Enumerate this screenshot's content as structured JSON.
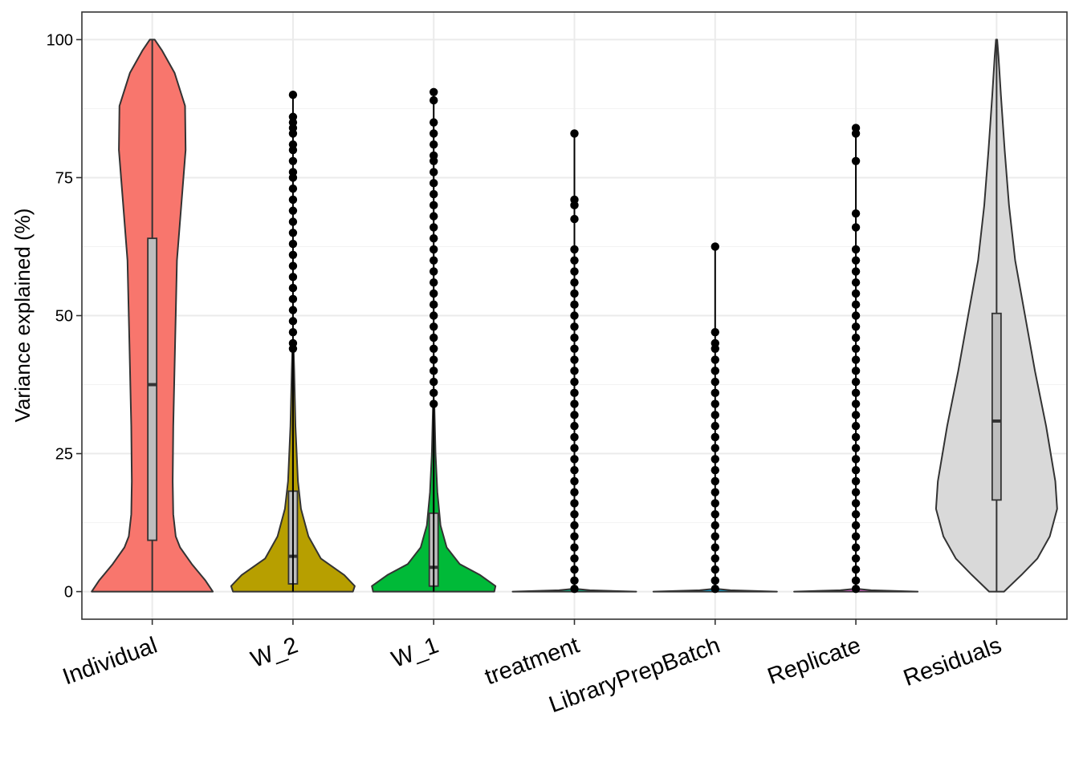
{
  "chart_data": {
    "type": "violin",
    "ylabel": "Variance explained (%)",
    "xlabel": "",
    "ylim": [
      -5,
      105
    ],
    "yticks": [
      0,
      25,
      50,
      75,
      100
    ],
    "grid": true,
    "categories": [
      "Individual",
      "W_2",
      "W_1",
      "treatment",
      "LibraryPrepBatch",
      "Replicate",
      "Residuals"
    ],
    "series": [
      {
        "category": "Individual",
        "color": "#F8766D",
        "box": {
          "q1": 9.3,
          "median": 37.5,
          "q3": 64,
          "whisker_low": 0,
          "whisker_high": 100
        },
        "violin": [
          [
            0,
            0.98
          ],
          [
            2,
            0.86
          ],
          [
            5,
            0.64
          ],
          [
            8,
            0.45
          ],
          [
            10,
            0.38
          ],
          [
            14,
            0.34
          ],
          [
            20,
            0.33
          ],
          [
            30,
            0.34
          ],
          [
            45,
            0.37
          ],
          [
            60,
            0.4
          ],
          [
            70,
            0.47
          ],
          [
            80,
            0.54
          ],
          [
            88,
            0.53
          ],
          [
            94,
            0.36
          ],
          [
            98,
            0.16
          ],
          [
            100,
            0.04
          ]
        ],
        "outliers": []
      },
      {
        "category": "W_2",
        "color": "#B79F00",
        "box": {
          "q1": 1.4,
          "median": 6.4,
          "q3": 18.2,
          "whisker_low": 0,
          "whisker_high": 43.5
        },
        "violin": [
          [
            0,
            0.97
          ],
          [
            1,
            1.0
          ],
          [
            3,
            0.83
          ],
          [
            6,
            0.45
          ],
          [
            10,
            0.25
          ],
          [
            15,
            0.13
          ],
          [
            20,
            0.08
          ],
          [
            30,
            0.04
          ],
          [
            40,
            0.02
          ],
          [
            44,
            0.01
          ]
        ],
        "outliers": [
          44,
          45,
          47,
          49,
          51,
          53,
          55,
          57,
          59,
          61,
          63,
          65,
          67,
          69,
          71,
          73,
          75,
          76,
          78,
          80,
          81,
          83,
          84,
          85,
          86,
          90
        ]
      },
      {
        "category": "W_1",
        "color": "#00BA38",
        "box": {
          "q1": 1.0,
          "median": 4.4,
          "q3": 14.2,
          "whisker_low": 0,
          "whisker_high": 33.8
        },
        "violin": [
          [
            0,
            0.98
          ],
          [
            1,
            1.0
          ],
          [
            3,
            0.75
          ],
          [
            5,
            0.42
          ],
          [
            8,
            0.21
          ],
          [
            12,
            0.11
          ],
          [
            18,
            0.06
          ],
          [
            25,
            0.03
          ],
          [
            34,
            0.01
          ]
        ],
        "outliers": [
          34,
          36,
          38,
          40,
          42,
          44,
          46,
          48,
          50,
          52,
          54,
          56,
          58,
          60,
          62,
          64,
          66,
          68,
          70,
          72,
          74,
          76,
          78,
          79,
          81,
          83,
          85,
          89,
          90.5
        ]
      },
      {
        "category": "treatment",
        "color": "#00C08B",
        "box": {
          "q1": 0,
          "median": 0,
          "q3": 0,
          "whisker_low": 0,
          "whisker_high": 0
        },
        "violin": [
          [
            0,
            1.0
          ],
          [
            0.25,
            0.25
          ],
          [
            0.5,
            0.02
          ]
        ],
        "outliers": [
          0.5,
          2,
          4,
          6,
          8,
          10,
          12,
          14,
          16,
          18,
          20,
          22,
          24,
          26,
          28,
          30,
          32,
          34,
          36,
          38,
          40,
          42,
          44,
          46,
          48,
          50,
          52,
          54,
          56,
          58,
          60,
          62,
          67.5,
          70,
          71,
          83
        ]
      },
      {
        "category": "LibraryPrepBatch",
        "color": "#00B4F0",
        "box": {
          "q1": 0,
          "median": 0,
          "q3": 0,
          "whisker_low": 0,
          "whisker_high": 0
        },
        "violin": [
          [
            0,
            1.0
          ],
          [
            0.25,
            0.25
          ],
          [
            0.5,
            0.02
          ]
        ],
        "outliers": [
          0.5,
          2,
          4,
          6,
          8,
          10,
          12,
          14,
          16,
          18,
          20,
          22,
          24,
          26,
          28,
          30,
          32,
          34,
          36,
          38,
          40,
          42,
          44,
          45,
          47,
          62.5
        ]
      },
      {
        "category": "Replicate",
        "color": "#F564E3",
        "box": {
          "q1": 0,
          "median": 0,
          "q3": 0,
          "whisker_low": 0,
          "whisker_high": 0
        },
        "violin": [
          [
            0,
            1.0
          ],
          [
            0.25,
            0.25
          ],
          [
            0.5,
            0.02
          ]
        ],
        "outliers": [
          0.5,
          2,
          4,
          6,
          8,
          10,
          12,
          14,
          16,
          18,
          20,
          22,
          24,
          26,
          28,
          30,
          32,
          34,
          36,
          38,
          40,
          42,
          44,
          46,
          48,
          50,
          52,
          54,
          56,
          58,
          60,
          62,
          66,
          68.5,
          78,
          83,
          84
        ]
      },
      {
        "category": "Residuals",
        "color": "#D9D9D9",
        "box": {
          "q1": 16.6,
          "median": 30.9,
          "q3": 50.4,
          "whisker_low": 0,
          "whisker_high": 100
        },
        "violin": [
          [
            0,
            0.12
          ],
          [
            3,
            0.4
          ],
          [
            6,
            0.66
          ],
          [
            10,
            0.86
          ],
          [
            15,
            0.98
          ],
          [
            20,
            0.95
          ],
          [
            30,
            0.8
          ],
          [
            40,
            0.62
          ],
          [
            50,
            0.46
          ],
          [
            60,
            0.3
          ],
          [
            70,
            0.2
          ],
          [
            80,
            0.13
          ],
          [
            90,
            0.07
          ],
          [
            97,
            0.03
          ],
          [
            100,
            0.01
          ]
        ],
        "outliers": []
      }
    ]
  }
}
